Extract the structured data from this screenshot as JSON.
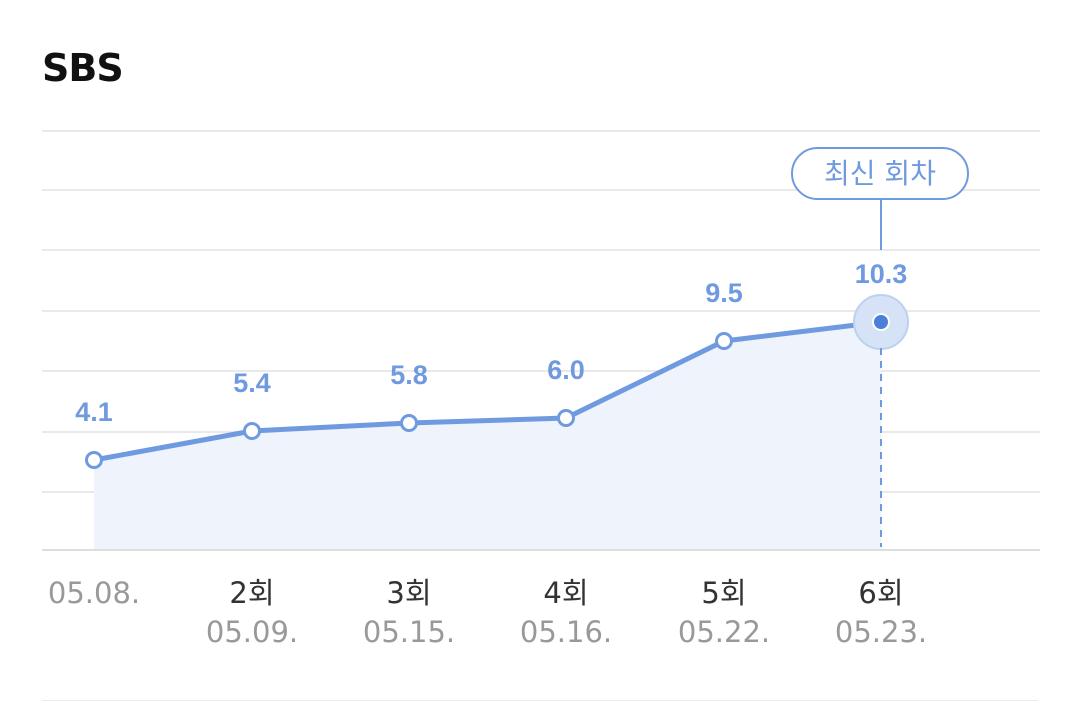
{
  "title": "SBS",
  "chart_data": {
    "type": "line",
    "categories": [
      {
        "episode": "",
        "date": "05.08."
      },
      {
        "episode": "2회",
        "date": "05.09."
      },
      {
        "episode": "3회",
        "date": "05.15."
      },
      {
        "episode": "4회",
        "date": "05.16."
      },
      {
        "episode": "5회",
        "date": "05.22."
      },
      {
        "episode": "6회",
        "date": "05.23."
      }
    ],
    "values": [
      4.1,
      5.4,
      5.8,
      6.0,
      9.5,
      10.3
    ],
    "value_labels": [
      "4.1",
      "5.4",
      "5.8",
      "6.0",
      "9.5",
      "10.3"
    ],
    "latest_label": "최신 회차",
    "grid": true,
    "colors": {
      "line": "#6f9ae0",
      "fill": "#eef3fc",
      "label": "#6f9ae0",
      "grid": "#e9e9e9",
      "axis_text": "#999999",
      "episode_text": "#333333"
    }
  }
}
